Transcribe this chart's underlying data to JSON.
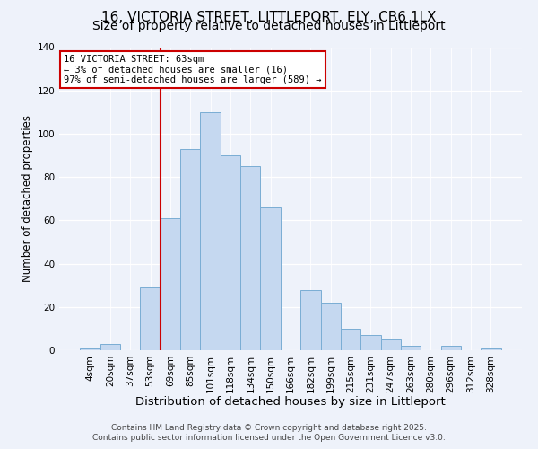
{
  "title": "16, VICTORIA STREET, LITTLEPORT, ELY, CB6 1LX",
  "subtitle": "Size of property relative to detached houses in Littleport",
  "xlabel": "Distribution of detached houses by size in Littleport",
  "ylabel": "Number of detached properties",
  "bar_labels": [
    "4sqm",
    "20sqm",
    "37sqm",
    "53sqm",
    "69sqm",
    "85sqm",
    "101sqm",
    "118sqm",
    "134sqm",
    "150sqm",
    "166sqm",
    "182sqm",
    "199sqm",
    "215sqm",
    "231sqm",
    "247sqm",
    "263sqm",
    "280sqm",
    "296sqm",
    "312sqm",
    "328sqm"
  ],
  "bar_values": [
    1,
    3,
    0,
    29,
    61,
    93,
    110,
    90,
    85,
    66,
    0,
    28,
    22,
    10,
    7,
    5,
    2,
    0,
    2,
    0,
    1
  ],
  "bar_color": "#c5d8f0",
  "bar_edge_color": "#7aadd4",
  "ylim": [
    0,
    140
  ],
  "yticks": [
    0,
    20,
    40,
    60,
    80,
    100,
    120,
    140
  ],
  "vline_x_index": 4,
  "vline_color": "#cc0000",
  "annotation_title": "16 VICTORIA STREET: 63sqm",
  "annotation_line1": "← 3% of detached houses are smaller (16)",
  "annotation_line2": "97% of semi-detached houses are larger (589) →",
  "annotation_box_color": "#ffffff",
  "annotation_box_edge": "#cc0000",
  "footer1": "Contains HM Land Registry data © Crown copyright and database right 2025.",
  "footer2": "Contains public sector information licensed under the Open Government Licence v3.0.",
  "background_color": "#eef2fa",
  "title_fontsize": 11,
  "subtitle_fontsize": 10,
  "xlabel_fontsize": 9.5,
  "ylabel_fontsize": 8.5,
  "tick_fontsize": 7.5,
  "annotation_fontsize": 7.5,
  "footer_fontsize": 6.5
}
